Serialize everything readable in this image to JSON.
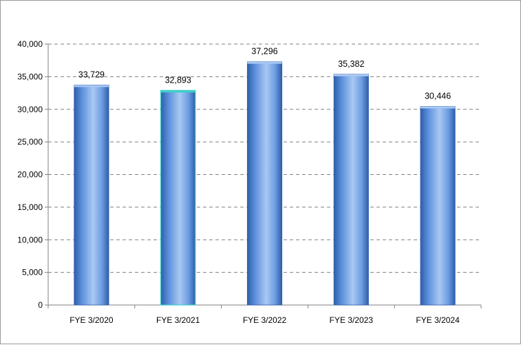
{
  "chart_data": {
    "type": "bar",
    "title": "",
    "xlabel": "",
    "ylabel": "",
    "categories": [
      "FYE 3/2020",
      "FYE 3/2021",
      "FYE 3/2022",
      "FYE 3/2023",
      "FYE 3/2024"
    ],
    "values": [
      33729,
      32893,
      37296,
      35382,
      30446
    ],
    "data_labels": [
      "33,729",
      "32,893",
      "37,296",
      "35,382",
      "30,446"
    ],
    "ylim": [
      0,
      40000
    ],
    "y_ticks": [
      0,
      5000,
      10000,
      15000,
      20000,
      25000,
      30000,
      35000,
      40000
    ],
    "y_tick_labels": [
      "0",
      "5,000",
      "10,000",
      "15,000",
      "20,000",
      "25,000",
      "30,000",
      "35,000",
      "40,000"
    ],
    "grid": true,
    "legend": "none",
    "colors": {
      "bar_fill": "#5b8fdc",
      "bar_light": "#a9c8f3",
      "bar_dark": "#2f5ea8",
      "highlight_edge": "#3cd0c8",
      "gridline": "#7f7f7f"
    }
  }
}
